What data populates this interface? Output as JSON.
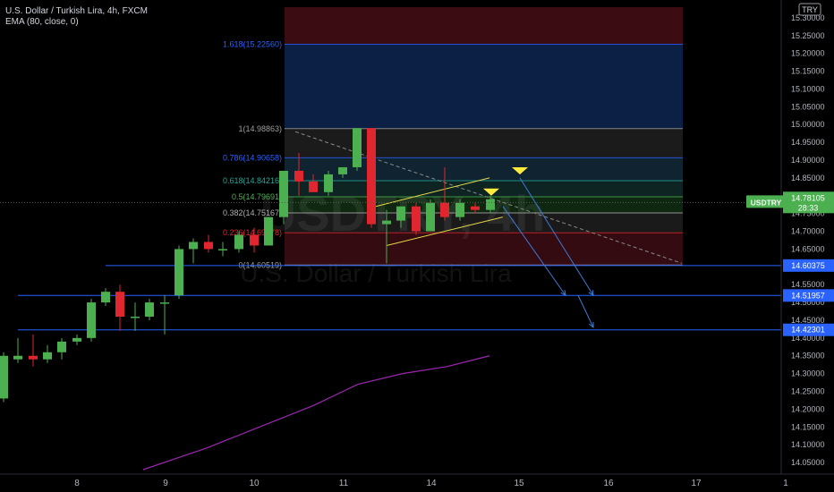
{
  "header": {
    "title_line": "U.S. Dollar / Turkish Lira, 4h, FXCM",
    "indicator_line": "EMA (80, close, 0)"
  },
  "currency_badge": "TRY",
  "watermark": {
    "symbol": "USDTRY, 4h",
    "name": "U.S. Dollar / Turkish Lira"
  },
  "axis": {
    "y_ticks": [
      "15.30000",
      "15.25000",
      "15.20000",
      "15.15000",
      "15.10000",
      "15.05000",
      "15.00000",
      "14.95000",
      "14.90000",
      "14.85000",
      "14.80000",
      "14.75000",
      "14.70000",
      "14.65000",
      "14.60000",
      "14.55000",
      "14.50000",
      "14.45000",
      "14.40000",
      "14.35000",
      "14.30000",
      "14.25000",
      "14.20000",
      "14.15000",
      "14.10000",
      "14.05000"
    ],
    "x_ticks": [
      "8",
      "9",
      "10",
      "11",
      "14",
      "15",
      "16",
      "17",
      "1"
    ]
  },
  "price_tags": {
    "symbol": "USDTRY",
    "last_price": "14.78105",
    "countdown": "28:33",
    "levels": [
      "14.60375",
      "14.51957",
      "14.42301"
    ]
  },
  "fib_labels": [
    "1.618(15.22560)",
    "1(14.98863)",
    "0.786(14.90658)",
    "0.618(14.84216)",
    "0.5(14.79691)",
    "0.382(14.75167)",
    "0.236(14.69578)",
    "0(14.60519)"
  ],
  "colors": {
    "up": "#4caf50",
    "down": "#e0262e",
    "horizontal_level": "#2962ff",
    "ema": "#9c27b0",
    "channel": "#e5d64a",
    "tag_green": "#4caf50",
    "tag_blue": "#2962ff",
    "arrow_marker": "#ffeb3b"
  },
  "chart_data": {
    "type": "candlestick",
    "symbol": "USDTRY",
    "timeframe": "4h",
    "ylim": [
      14.03,
      15.33
    ],
    "candles": [
      {
        "x": 4,
        "o": 14.23,
        "h": 14.36,
        "l": 14.22,
        "c": 14.35
      },
      {
        "x": 20,
        "o": 14.34,
        "h": 14.4,
        "l": 14.33,
        "c": 14.35
      },
      {
        "x": 37,
        "o": 14.35,
        "h": 14.41,
        "l": 14.32,
        "c": 14.34
      },
      {
        "x": 53,
        "o": 14.34,
        "h": 14.38,
        "l": 14.33,
        "c": 14.36
      },
      {
        "x": 69,
        "o": 14.36,
        "h": 14.4,
        "l": 14.34,
        "c": 14.39
      },
      {
        "x": 86,
        "o": 14.39,
        "h": 14.41,
        "l": 14.38,
        "c": 14.4
      },
      {
        "x": 102,
        "o": 14.4,
        "h": 14.51,
        "l": 14.39,
        "c": 14.5
      },
      {
        "x": 118,
        "o": 14.5,
        "h": 14.54,
        "l": 14.49,
        "c": 14.53
      },
      {
        "x": 134,
        "o": 14.53,
        "h": 14.55,
        "l": 14.42,
        "c": 14.46
      },
      {
        "x": 151,
        "o": 14.46,
        "h": 14.5,
        "l": 14.42,
        "c": 14.46
      },
      {
        "x": 167,
        "o": 14.46,
        "h": 14.51,
        "l": 14.45,
        "c": 14.5
      },
      {
        "x": 184,
        "o": 14.5,
        "h": 14.52,
        "l": 14.41,
        "c": 14.5
      },
      {
        "x": 200,
        "o": 14.52,
        "h": 14.66,
        "l": 14.51,
        "c": 14.65
      },
      {
        "x": 216,
        "o": 14.65,
        "h": 14.68,
        "l": 14.61,
        "c": 14.67
      },
      {
        "x": 233,
        "o": 14.67,
        "h": 14.69,
        "l": 14.64,
        "c": 14.65
      },
      {
        "x": 249,
        "o": 14.65,
        "h": 14.67,
        "l": 14.63,
        "c": 14.65
      },
      {
        "x": 267,
        "o": 14.65,
        "h": 14.7,
        "l": 14.64,
        "c": 14.69
      },
      {
        "x": 284,
        "o": 14.69,
        "h": 14.71,
        "l": 14.64,
        "c": 14.66
      },
      {
        "x": 300,
        "o": 14.66,
        "h": 14.74,
        "l": 14.66,
        "c": 14.74
      },
      {
        "x": 317,
        "o": 14.74,
        "h": 14.87,
        "l": 14.72,
        "c": 14.87
      },
      {
        "x": 334,
        "o": 14.87,
        "h": 14.92,
        "l": 14.8,
        "c": 14.84
      },
      {
        "x": 350,
        "o": 14.84,
        "h": 14.86,
        "l": 14.81,
        "c": 14.81
      },
      {
        "x": 367,
        "o": 14.81,
        "h": 14.87,
        "l": 14.8,
        "c": 14.86
      },
      {
        "x": 383,
        "o": 14.86,
        "h": 14.88,
        "l": 14.85,
        "c": 14.88
      },
      {
        "x": 399,
        "o": 14.88,
        "h": 14.99,
        "l": 14.87,
        "c": 14.99
      },
      {
        "x": 415,
        "o": 14.99,
        "h": 14.99,
        "l": 14.71,
        "c": 14.72
      },
      {
        "x": 432,
        "o": 14.72,
        "h": 14.76,
        "l": 14.61,
        "c": 14.73
      },
      {
        "x": 448,
        "o": 14.73,
        "h": 14.77,
        "l": 14.71,
        "c": 14.77
      },
      {
        "x": 465,
        "o": 14.77,
        "h": 14.78,
        "l": 14.69,
        "c": 14.7
      },
      {
        "x": 481,
        "o": 14.7,
        "h": 14.79,
        "l": 14.7,
        "c": 14.78
      },
      {
        "x": 497,
        "o": 14.78,
        "h": 14.88,
        "l": 14.73,
        "c": 14.74
      },
      {
        "x": 514,
        "o": 14.74,
        "h": 14.79,
        "l": 14.73,
        "c": 14.78
      },
      {
        "x": 531,
        "o": 14.77,
        "h": 14.78,
        "l": 14.75,
        "c": 14.76
      },
      {
        "x": 548,
        "o": 14.76,
        "h": 14.8,
        "l": 14.75,
        "c": 14.79
      }
    ],
    "ema": [
      [
        160,
        14.03
      ],
      [
        230,
        14.09
      ],
      [
        300,
        14.16
      ],
      [
        350,
        14.21
      ],
      [
        400,
        14.27
      ],
      [
        450,
        14.3
      ],
      [
        500,
        14.32
      ],
      [
        547,
        14.35
      ]
    ],
    "horizontal_levels": [
      14.60375,
      14.51957,
      14.42301
    ],
    "fibonacci": {
      "x_range": [
        318,
        763
      ],
      "levels": [
        {
          "ratio": "1.618",
          "price": 15.2256,
          "label_color": "#2962ff"
        },
        {
          "ratio": "1",
          "price": 14.98863,
          "label_color": "#9e9e9e"
        },
        {
          "ratio": "0.786",
          "price": 14.90658,
          "label_color": "#2962ff"
        },
        {
          "ratio": "0.618",
          "price": 14.84216,
          "label_color": "#26a69a"
        },
        {
          "ratio": "0.5",
          "price": 14.79691,
          "label_color": "#4caf50"
        },
        {
          "ratio": "0.382",
          "price": 14.75167,
          "label_color": "#b0b0b0"
        },
        {
          "ratio": "0.236",
          "price": 14.69578,
          "label_color": "#e0262e"
        },
        {
          "ratio": "0",
          "price": 14.60519,
          "label_color": "#9e9e9e"
        }
      ],
      "bands": [
        {
          "from": 15.33,
          "to": 15.2256,
          "color": "#3b0d13"
        },
        {
          "from": 15.2256,
          "to": 14.98863,
          "color": "#0c1f45"
        },
        {
          "from": 14.98863,
          "to": 14.90658,
          "color": "#1b1b1b"
        },
        {
          "from": 14.90658,
          "to": 14.84216,
          "color": "#0f2430"
        },
        {
          "from": 14.84216,
          "to": 14.79691,
          "color": "#0d2423"
        },
        {
          "from": 14.79691,
          "to": 14.75167,
          "color": "#0f2710"
        },
        {
          "from": 14.75167,
          "to": 14.69578,
          "color": "#1a1a1a"
        },
        {
          "from": 14.69578,
          "to": 14.60519,
          "color": "#330b10"
        }
      ]
    },
    "trendline": [
      [
        330,
        14.98
      ],
      [
        762,
        14.61
      ]
    ],
    "channel": {
      "upper": [
        [
          420,
          14.77
        ],
        [
          547,
          14.85
        ]
      ],
      "lower": [
        [
          432,
          14.66
        ],
        [
          562,
          14.74
        ]
      ]
    },
    "markers": [
      [
        549,
        14.81
      ],
      [
        581,
        14.87
      ]
    ],
    "projection_arrows": [
      [
        [
          562,
          14.77
        ],
        [
          632,
          14.52
        ]
      ],
      [
        [
          581,
          14.85
        ],
        [
          663,
          14.52
        ]
      ],
      [
        [
          646,
          14.52
        ],
        [
          663,
          14.43
        ]
      ]
    ]
  }
}
